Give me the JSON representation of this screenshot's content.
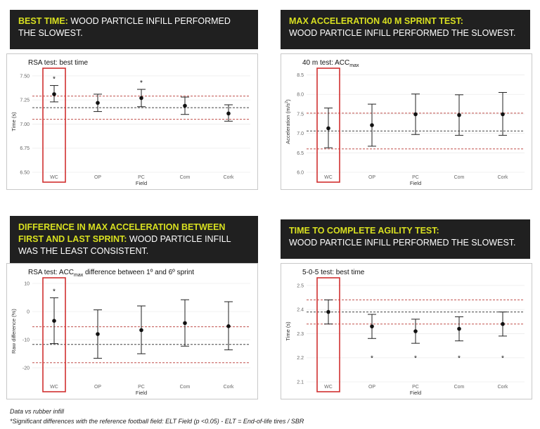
{
  "headers": [
    {
      "highlight": "BEST TIME:",
      "text": "WOOD PARTICLE INFILL PERFORMED THE SLOWEST."
    },
    {
      "highlight": "MAX ACCELERATION 40 M SPRINT TEST:",
      "text": "WOOD PARTICLE INFILL PERFORMED THE SLOWEST."
    },
    {
      "highlight": "DIFFERENCE IN MAX ACCELERATION BETWEEN FIRST AND LAST SPRINT:",
      "text": "WOOD PARTICLE INFILL WAS THE LEAST CONSISTENT."
    },
    {
      "highlight": "TIME TO COMPLETE AGILITY TEST:",
      "text": "WOOD PARTICLE INFILL PERFORMED THE SLOWEST."
    }
  ],
  "footnotes": {
    "line1": "Data vs rubber infill",
    "line2": "*Significant differences with the reference football field: ELT Field (p <0.05) - ELT = End-of-life tires / SBR"
  },
  "colors": {
    "header_bg": "#202020",
    "highlight": "#d8e020",
    "ref_line": "#c0504d",
    "box": "#d03030"
  },
  "chart_data": [
    {
      "type": "errorbar",
      "title": "RSA test: best time",
      "xlabel": "Field",
      "ylabel": "Time (s)",
      "categories": [
        "WC",
        "OP",
        "PC",
        "Com",
        "Cork"
      ],
      "values": [
        7.31,
        7.22,
        7.27,
        7.19,
        7.11
      ],
      "lower": [
        7.23,
        7.13,
        7.18,
        7.1,
        7.03
      ],
      "upper": [
        7.4,
        7.31,
        7.36,
        7.28,
        7.2
      ],
      "significant": [
        "*",
        "",
        "*",
        "",
        ""
      ],
      "ylim": [
        6.5,
        7.55
      ],
      "yticks": [
        "6.50",
        "6.75",
        "7.00",
        "7.25",
        "7.50"
      ],
      "ytick_values": [
        6.5,
        6.75,
        7.0,
        7.25,
        7.5
      ],
      "reference": {
        "mean": 7.17,
        "band": [
          7.05,
          7.29
        ]
      },
      "highlight_category": "WC",
      "grid": true
    },
    {
      "type": "errorbar",
      "title_main": "40 m test: ACC",
      "title_sub": "max",
      "xlabel": "Field",
      "ylabel_main": "Acceleration (m/s",
      "ylabel_sup": "2",
      "ylabel_end": ")",
      "categories": [
        "WC",
        "OP",
        "PC",
        "Com",
        "Cork"
      ],
      "values": [
        7.13,
        7.21,
        7.49,
        7.47,
        7.49
      ],
      "lower": [
        6.63,
        6.67,
        6.97,
        6.95,
        6.95
      ],
      "upper": [
        7.65,
        7.75,
        8.01,
        7.99,
        8.05
      ],
      "significant": [
        "",
        "",
        "",
        "",
        ""
      ],
      "ylim": [
        6.0,
        8.6
      ],
      "yticks": [
        "6.0",
        "6.5",
        "7.0",
        "7.5",
        "8.0",
        "8.5"
      ],
      "ytick_values": [
        6.0,
        6.5,
        7.0,
        7.5,
        8.0,
        8.5
      ],
      "reference": {
        "mean": 7.06,
        "band": [
          6.6,
          7.52
        ]
      },
      "highlight_category": "WC",
      "grid": true
    },
    {
      "type": "errorbar",
      "title_main": "RSA test: ACC",
      "title_sub": "max",
      "title_end": " difference between 1º and 6º sprint",
      "xlabel": "Field",
      "ylabel": "Raw difference (%)",
      "categories": [
        "WC",
        "OP",
        "PC",
        "Com",
        "Cork"
      ],
      "values": [
        -3.3,
        -8.0,
        -6.6,
        -4.1,
        -5.2
      ],
      "lower": [
        -11.4,
        -16.6,
        -15.0,
        -12.3,
        -13.6
      ],
      "upper": [
        4.9,
        0.6,
        2.0,
        4.2,
        3.5
      ],
      "significant": [
        "*",
        "",
        "",
        "",
        ""
      ],
      "ylim": [
        -25,
        11
      ],
      "yticks": [
        "10",
        "0",
        "-10",
        "-20"
      ],
      "ytick_values": [
        10,
        0,
        -10,
        -20
      ],
      "reference": {
        "mean": -11.7,
        "band": [
          -18.2,
          -5.4
        ]
      },
      "highlight_category": "WC",
      "grid": true
    },
    {
      "type": "errorbar",
      "title": "5-0-5 test: best time",
      "xlabel": "Field",
      "ylabel": "Time (s)",
      "categories": [
        "WC",
        "OP",
        "PC",
        "Com",
        "Cork"
      ],
      "values": [
        2.39,
        2.33,
        2.31,
        2.32,
        2.34
      ],
      "lower": [
        2.34,
        2.28,
        2.26,
        2.27,
        2.29
      ],
      "upper": [
        2.44,
        2.38,
        2.36,
        2.37,
        2.39
      ],
      "significant": [
        "",
        "*",
        "*",
        "*",
        "*"
      ],
      "ylim": [
        2.1,
        2.52
      ],
      "yticks": [
        "2.1",
        "2.2",
        "2.3",
        "2.4",
        "2.5"
      ],
      "ytick_values": [
        2.1,
        2.2,
        2.3,
        2.4,
        2.5
      ],
      "reference": {
        "mean": 2.39,
        "band": [
          2.34,
          2.44
        ]
      },
      "highlight_category": "WC",
      "grid": true
    }
  ]
}
